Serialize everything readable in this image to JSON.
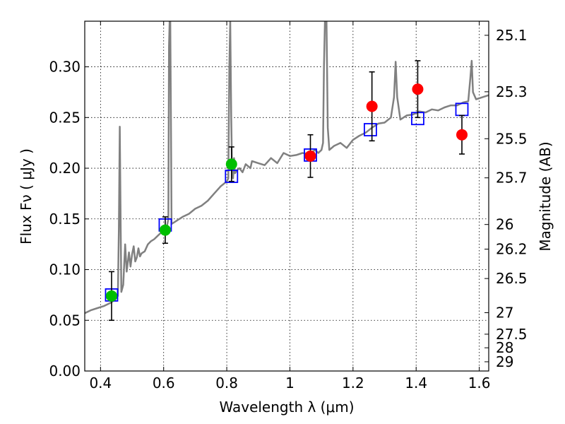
{
  "chart_data": {
    "type": "scatter",
    "xlabel": "Wavelength  λ (μm)",
    "ylabel": "Flux  Fν  ( μJy )",
    "y2label": "Magnitude (AB)",
    "xlim": [
      0.35,
      1.63
    ],
    "ylim": [
      0.0,
      0.345
    ],
    "grid": true,
    "x_ticks": [
      0.4,
      0.6,
      0.8,
      1.0,
      1.2,
      1.4,
      1.6
    ],
    "x_tick_labels": [
      "0.4",
      "0.6",
      "0.8",
      "1",
      "1.2",
      "1.4",
      "1.6"
    ],
    "y_ticks": [
      0.0,
      0.05,
      0.1,
      0.15,
      0.2,
      0.25,
      0.3
    ],
    "y_tick_labels": [
      "0.00",
      "0.05",
      "0.10",
      "0.15",
      "0.20",
      "0.25",
      "0.30"
    ],
    "y2_ticks": [
      {
        "label": "25.1",
        "flux": 0.3311
      },
      {
        "label": "25.3",
        "flux": 0.2754
      },
      {
        "label": "25.5",
        "flux": 0.2291
      },
      {
        "label": "25.7",
        "flux": 0.1905
      },
      {
        "label": "26",
        "flux": 0.1445
      },
      {
        "label": "26.2",
        "flux": 0.1202
      },
      {
        "label": "26.5",
        "flux": 0.0912
      },
      {
        "label": "27",
        "flux": 0.0575
      },
      {
        "label": "27.5",
        "flux": 0.0363
      },
      {
        "label": "28",
        "flux": 0.0229
      },
      {
        "label": "29",
        "flux": 0.0091
      }
    ],
    "series": [
      {
        "kind": "line",
        "color": "#808080",
        "points": [
          [
            0.35,
            0.057
          ],
          [
            0.37,
            0.06
          ],
          [
            0.39,
            0.062
          ],
          [
            0.41,
            0.064
          ],
          [
            0.43,
            0.067
          ],
          [
            0.445,
            0.07
          ],
          [
            0.455,
            0.074
          ],
          [
            0.458,
            0.14
          ],
          [
            0.461,
            0.241
          ],
          [
            0.464,
            0.14
          ],
          [
            0.466,
            0.078
          ],
          [
            0.472,
            0.085
          ],
          [
            0.478,
            0.125
          ],
          [
            0.483,
            0.098
          ],
          [
            0.49,
            0.117
          ],
          [
            0.495,
            0.103
          ],
          [
            0.5,
            0.115
          ],
          [
            0.505,
            0.123
          ],
          [
            0.51,
            0.108
          ],
          [
            0.515,
            0.112
          ],
          [
            0.52,
            0.121
          ],
          [
            0.525,
            0.113
          ],
          [
            0.53,
            0.116
          ],
          [
            0.54,
            0.118
          ],
          [
            0.55,
            0.125
          ],
          [
            0.56,
            0.128
          ],
          [
            0.57,
            0.13
          ],
          [
            0.58,
            0.133
          ],
          [
            0.59,
            0.136
          ],
          [
            0.6,
            0.14
          ],
          [
            0.61,
            0.142
          ],
          [
            0.615,
            0.15
          ],
          [
            0.617,
            0.32
          ],
          [
            0.619,
            0.345
          ],
          [
            0.621,
            0.345
          ],
          [
            0.623,
            0.25
          ],
          [
            0.625,
            0.145
          ],
          [
            0.64,
            0.148
          ],
          [
            0.66,
            0.152
          ],
          [
            0.68,
            0.155
          ],
          [
            0.7,
            0.16
          ],
          [
            0.72,
            0.163
          ],
          [
            0.74,
            0.168
          ],
          [
            0.76,
            0.175
          ],
          [
            0.78,
            0.182
          ],
          [
            0.8,
            0.187
          ],
          [
            0.805,
            0.19
          ],
          [
            0.808,
            0.3
          ],
          [
            0.811,
            0.345
          ],
          [
            0.814,
            0.25
          ],
          [
            0.817,
            0.192
          ],
          [
            0.82,
            0.19
          ],
          [
            0.823,
            0.21
          ],
          [
            0.826,
            0.195
          ],
          [
            0.832,
            0.198
          ],
          [
            0.84,
            0.2
          ],
          [
            0.85,
            0.196
          ],
          [
            0.86,
            0.204
          ],
          [
            0.875,
            0.2
          ],
          [
            0.88,
            0.207
          ],
          [
            0.9,
            0.205
          ],
          [
            0.92,
            0.203
          ],
          [
            0.94,
            0.21
          ],
          [
            0.96,
            0.205
          ],
          [
            0.98,
            0.215
          ],
          [
            1.0,
            0.212
          ],
          [
            1.02,
            0.213
          ],
          [
            1.04,
            0.215
          ],
          [
            1.06,
            0.214
          ],
          [
            1.08,
            0.218
          ],
          [
            1.09,
            0.215
          ],
          [
            1.1,
            0.218
          ],
          [
            1.105,
            0.225
          ],
          [
            1.108,
            0.3
          ],
          [
            1.111,
            0.345
          ],
          [
            1.116,
            0.345
          ],
          [
            1.12,
            0.24
          ],
          [
            1.125,
            0.218
          ],
          [
            1.14,
            0.222
          ],
          [
            1.16,
            0.225
          ],
          [
            1.18,
            0.22
          ],
          [
            1.2,
            0.228
          ],
          [
            1.22,
            0.232
          ],
          [
            1.24,
            0.235
          ],
          [
            1.26,
            0.24
          ],
          [
            1.28,
            0.244
          ],
          [
            1.3,
            0.245
          ],
          [
            1.32,
            0.25
          ],
          [
            1.33,
            0.27
          ],
          [
            1.335,
            0.305
          ],
          [
            1.34,
            0.27
          ],
          [
            1.35,
            0.248
          ],
          [
            1.37,
            0.252
          ],
          [
            1.39,
            0.253
          ],
          [
            1.41,
            0.256
          ],
          [
            1.43,
            0.255
          ],
          [
            1.45,
            0.258
          ],
          [
            1.47,
            0.257
          ],
          [
            1.49,
            0.26
          ],
          [
            1.51,
            0.262
          ],
          [
            1.53,
            0.262
          ],
          [
            1.55,
            0.265
          ],
          [
            1.565,
            0.266
          ],
          [
            1.572,
            0.29
          ],
          [
            1.576,
            0.306
          ],
          [
            1.58,
            0.275
          ],
          [
            1.59,
            0.268
          ],
          [
            1.61,
            0.27
          ],
          [
            1.63,
            0.272
          ]
        ]
      },
      {
        "kind": "squares",
        "color": "#0000ff",
        "points": [
          [
            0.435,
            0.075
          ],
          [
            0.605,
            0.144
          ],
          [
            0.815,
            0.192
          ],
          [
            1.065,
            0.213
          ],
          [
            1.255,
            0.238
          ],
          [
            1.405,
            0.249
          ],
          [
            1.545,
            0.258
          ]
        ]
      },
      {
        "kind": "circles-errorbars",
        "color": "#00bf00",
        "points": [
          {
            "x": 0.435,
            "y": 0.074,
            "lo": 0.05,
            "hi": 0.098
          },
          {
            "x": 0.605,
            "y": 0.139,
            "lo": 0.126,
            "hi": 0.152
          },
          {
            "x": 0.815,
            "y": 0.204,
            "lo": 0.187,
            "hi": 0.221
          }
        ]
      },
      {
        "kind": "circles-errorbars",
        "color": "#ff0000",
        "points": [
          {
            "x": 1.065,
            "y": 0.212,
            "lo": 0.191,
            "hi": 0.233
          },
          {
            "x": 1.26,
            "y": 0.261,
            "lo": 0.227,
            "hi": 0.295
          },
          {
            "x": 1.405,
            "y": 0.278,
            "lo": 0.25,
            "hi": 0.306
          },
          {
            "x": 1.545,
            "y": 0.233,
            "lo": 0.214,
            "hi": 0.252
          }
        ]
      }
    ]
  }
}
